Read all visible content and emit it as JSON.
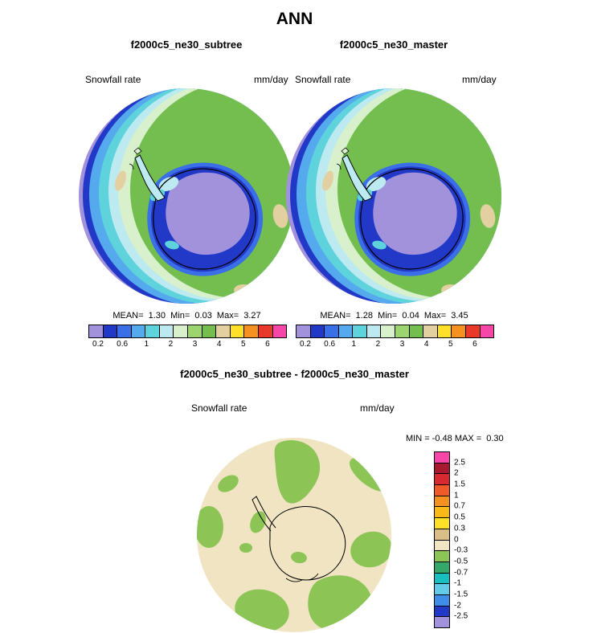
{
  "title": "ANN",
  "panels": {
    "left": {
      "title": "f2000c5_ne30_subtree",
      "var_label": "Snowfall rate",
      "units": "mm/day",
      "stats": "MEAN=  1.30  Min=  0.03  Max=  3.27"
    },
    "right": {
      "title": "f2000c5_ne30_master",
      "var_label": "Snowfall rate",
      "units": "mm/day",
      "stats": "MEAN=  1.28  Min=  0.04  Max=  3.45"
    },
    "diff": {
      "title": "f2000c5_ne30_subtree - f2000c5_ne30_master",
      "var_label": "Snowfall rate",
      "units": "mm/day",
      "minmax": "MIN = -0.48 MAX =  0.30"
    }
  },
  "colorbar_h": {
    "ticks": [
      "0.2",
      "0.6",
      "1",
      "2",
      "3",
      "4",
      "5",
      "6"
    ],
    "colors": [
      "#A292DC",
      "#2239C8",
      "#3A6FE8",
      "#55AAEE",
      "#5ED3DC",
      "#BCEAF0",
      "#D8F0CC",
      "#9CD470",
      "#74BE50",
      "#E2D0A0",
      "#FFE028",
      "#F59120",
      "#E8392C",
      "#F646A8"
    ]
  },
  "colorbar_v": {
    "labels": [
      "2.5",
      "2",
      "1.5",
      "1",
      "0.7",
      "0.5",
      "0.3",
      "0",
      "-0.3",
      "-0.5",
      "-0.7",
      "-1",
      "-1.5",
      "-2",
      "-2.5"
    ],
    "colors": [
      "#F646A8",
      "#A81830",
      "#D82830",
      "#EE5A28",
      "#F59120",
      "#FBB918",
      "#FFE028",
      "#D9BE87",
      "#F0E4C2",
      "#8CC455",
      "#35A869",
      "#19BFBF",
      "#63CBE8",
      "#3E8EE8",
      "#2239C8",
      "#A292DC"
    ]
  },
  "palette": {
    "ocean_green": "#74BE50",
    "continent_purple": "#A292DC",
    "ring_dark_blue": "#2239C8",
    "diff_background_tan": "#F0E4C2",
    "diff_green": "#8CC455"
  },
  "chart_data": [
    {
      "type": "heatmap",
      "subtype": "polar_stereographic_contour_map",
      "title": "f2000c5_ne30_subtree",
      "variable": "Snowfall rate",
      "units": "mm/day",
      "region": "Antarctica (south polar view)",
      "contour_levels": [
        0.2,
        0.6,
        1,
        2,
        3,
        4,
        5,
        6
      ],
      "mean": 1.3,
      "min": 0.03,
      "max": 3.27
    },
    {
      "type": "heatmap",
      "subtype": "polar_stereographic_contour_map",
      "title": "f2000c5_ne30_master",
      "variable": "Snowfall rate",
      "units": "mm/day",
      "region": "Antarctica (south polar view)",
      "contour_levels": [
        0.2,
        0.6,
        1,
        2,
        3,
        4,
        5,
        6
      ],
      "mean": 1.28,
      "min": 0.04,
      "max": 3.45
    },
    {
      "type": "heatmap",
      "subtype": "polar_stereographic_difference_map",
      "title": "f2000c5_ne30_subtree - f2000c5_ne30_master",
      "variable": "Snowfall rate",
      "units": "mm/day",
      "region": "Antarctica (south polar view)",
      "contour_levels": [
        -2.5,
        -2,
        -1.5,
        -1,
        -0.7,
        -0.5,
        -0.3,
        0,
        0.3,
        0.5,
        0.7,
        1,
        1.5,
        2,
        2.5
      ],
      "min": -0.48,
      "max": 0.3
    }
  ]
}
